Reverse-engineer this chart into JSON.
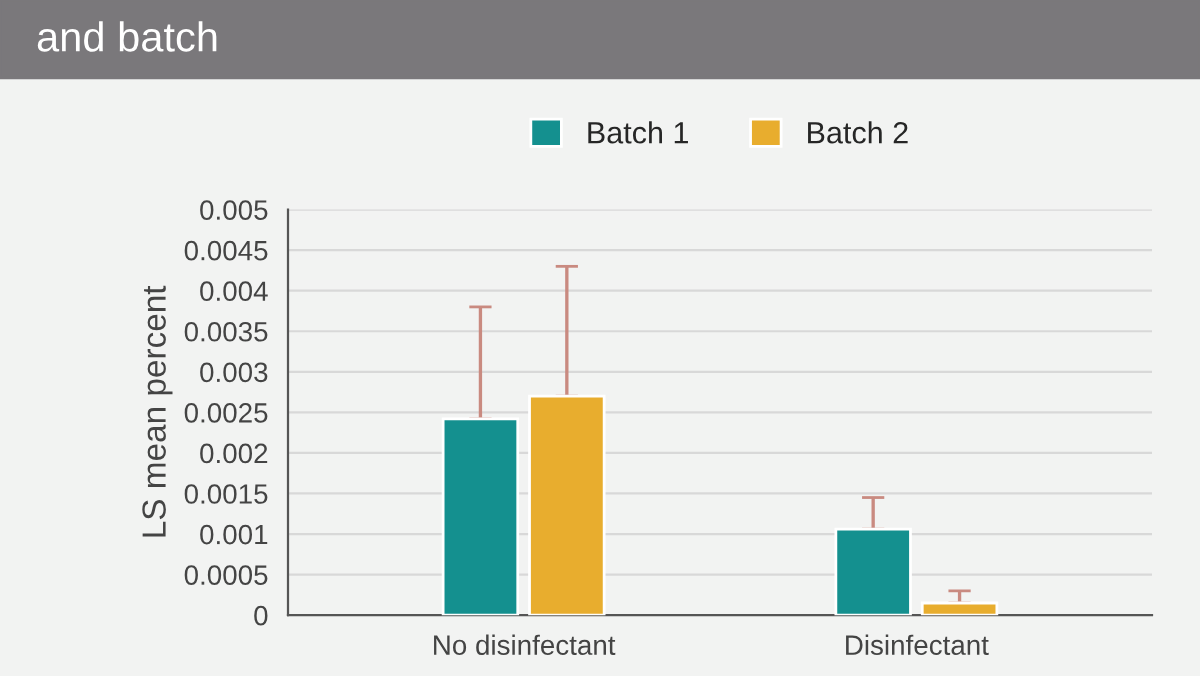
{
  "chart_data": {
    "type": "bar",
    "title": "and batch",
    "ylabel": "LS mean percent",
    "categories": [
      "No disinfectant",
      "Disinfectant"
    ],
    "series": [
      {
        "name": "Batch 1",
        "color": "#14908f",
        "values": [
          0.00242,
          0.00106
        ],
        "errors": [
          [
            0.00242,
            0.0038
          ],
          [
            0.00106,
            0.00145
          ]
        ]
      },
      {
        "name": "Batch 2",
        "color": "#e8ad2e",
        "values": [
          0.0027,
          0.00015
        ],
        "errors": [
          [
            0.0027,
            0.0043
          ],
          [
            0.00015,
            0.0003
          ]
        ]
      }
    ],
    "ylim": [
      0,
      0.005
    ],
    "yticks": [
      0,
      0.0005,
      0.001,
      0.0015,
      0.002,
      0.0025,
      0.003,
      0.0035,
      0.004,
      0.0045,
      0.005
    ],
    "grid": "y",
    "legend": "top"
  }
}
